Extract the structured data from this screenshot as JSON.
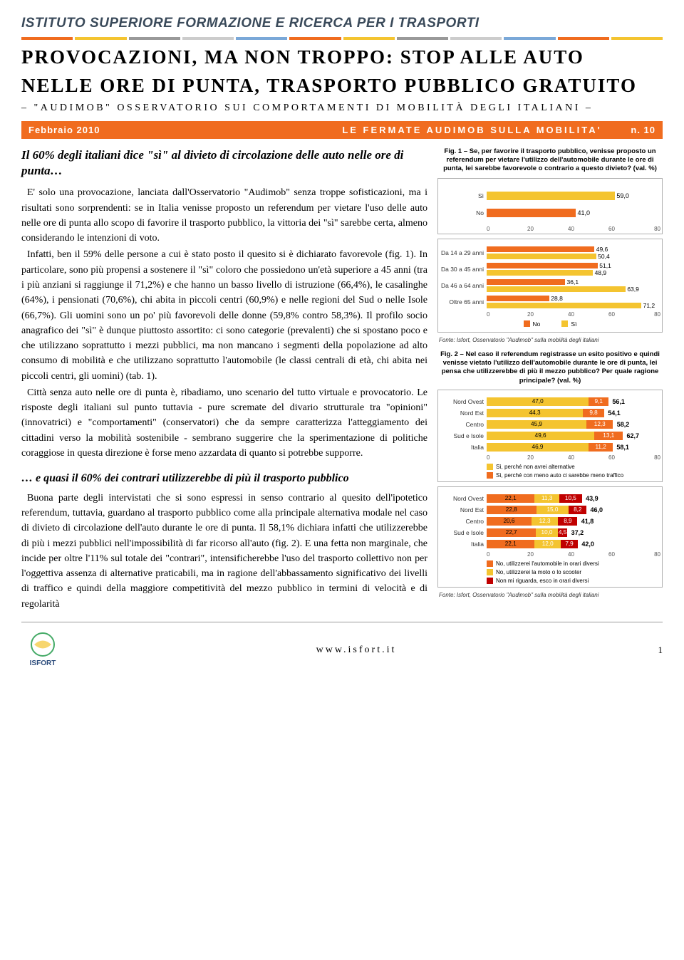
{
  "header_org": "ISTITUTO SUPERIORE FORMAZIONE E RICERCA PER I TRASPORTI",
  "decor_colors": [
    "#f06c1f",
    "#f4c430",
    "#999999",
    "#cccccc",
    "#7aa8d8",
    "#f06c1f",
    "#f4c430",
    "#999999",
    "#cccccc",
    "#7aa8d8",
    "#f06c1f",
    "#f4c430"
  ],
  "title_line1": "PROVOCAZIONI, MA NON TROPPO: STOP ALLE AUTO",
  "title_line2": "NELLE ORE DI PUNTA, TRASPORTO PUBBLICO GRATUITO",
  "subtitle": "– \"AUDIMOB\" OSSERVATORIO SUI COMPORTAMENTI DI MOBILITÀ DEGLI ITALIANI –",
  "issue": {
    "date": "Febbraio 2010",
    "series": "LE FERMATE AUDIMOB SULLA MOBILITA'",
    "num": "n. 10"
  },
  "lead1": "Il 60% degli italiani dice \"sì\" al divieto di circolazione delle auto nelle ore di punta…",
  "p1": "E' solo una provocazione, lanciata dall'Osservatorio \"Audimob\" senza troppe sofisticazioni, ma i risultati sono sorprendenti: se in Italia venisse proposto un referendum per vietare l'uso delle auto nelle ore di punta allo scopo di favorire il trasporto pubblico, la vittoria dei \"sì\" sarebbe certa, almeno considerando le intenzioni di voto.",
  "p2": "Infatti, ben il 59% delle persone a cui è stato posto il quesito si è dichiarato favorevole (fig. 1). In particolare, sono più propensi a sostenere il \"sì\" coloro che possiedono un'età superiore a 45 anni (tra i più anziani si raggiunge il 71,2%) e che hanno un basso livello di istruzione (66,4%), le casalinghe (64%), i pensionati (70,6%), chi abita in piccoli centri (60,9%) e nelle regioni del Sud o nelle Isole (66,7%). Gli uomini sono un po' più favorevoli delle donne (59,8% contro 58,3%). Il profilo socio anagrafico dei \"sì\" è dunque piuttosto assortito: ci sono categorie (prevalenti) che si spostano poco e che utilizzano soprattutto i mezzi pubblici, ma non mancano i segmenti della popolazione ad alto consumo di mobilità e che utilizzano soprattutto l'automobile (le classi centrali di età, chi abita nei piccoli centri, gli uomini) (tab. 1).",
  "p3": "Città senza auto nelle ore di punta è, ribadiamo, uno scenario del tutto virtuale e provocatorio. Le risposte degli italiani sul punto tuttavia - pure scremate del divario strutturale tra \"opinioni\" (innovatrici) e \"comportamenti\" (conservatori) che da sempre caratterizza l'atteggiamento dei cittadini verso la mobilità sostenibile - sembrano suggerire che la sperimentazione di politiche coraggiose in questa direzione è forse meno azzardata di quanto si potrebbe supporre.",
  "lead2": "… e quasi il 60% dei contrari utilizzerebbe di più il trasporto pubblico",
  "p4": "Buona parte degli intervistati che si sono espressi in senso contrario al quesito dell'ipotetico referendum, tuttavia, guardano al trasporto pubblico come alla principale alternativa modale nel caso di divieto di circolazione dell'auto durante le ore di punta. Il 58,1% dichiara infatti che utilizzerebbe di più i mezzi pubblici nell'impossibilità di far ricorso all'auto (fig. 2). E una fetta non marginale, che incide per oltre l'11% sul totale dei \"contrari\", intensificherebbe l'uso del trasporto collettivo non per l'oggettiva assenza di alternative praticabili, ma in ragione dell'abbassamento significativo dei livelli di traffico e quindi della maggiore competitività del mezzo pubblico in termini di velocità e di regolarità",
  "fig1_caption": "Fig. 1 – Se, per favorire il trasporto pubblico, venisse proposto un referendum per vietare l'utilizzo dell'automobile durante le ore di punta, lei sarebbe favorevole o contrario a questo divieto? (val. %)",
  "fig1a": {
    "max": 80,
    "rows": [
      {
        "label": "Sì",
        "value": 59.0,
        "color": "#f4c430"
      },
      {
        "label": "No",
        "value": 41.0,
        "color": "#f06c1f"
      }
    ],
    "ticks": [
      "0",
      "20",
      "40",
      "60",
      "80"
    ]
  },
  "fig1b": {
    "max": 80,
    "categories": [
      "Da 14 a 29 anni",
      "Da 30 a 45 anni",
      "Da 46 a 64 anni",
      "Oltre 65 anni"
    ],
    "series": [
      {
        "name": "No",
        "color": "#f06c1f",
        "vals": [
          49.6,
          51.1,
          36.1,
          28.8
        ]
      },
      {
        "name": "Sì",
        "color": "#f4c430",
        "vals": [
          50.4,
          48.9,
          63.9,
          71.2
        ]
      }
    ],
    "ticks": [
      "0",
      "20",
      "40",
      "60",
      "80"
    ],
    "legend": [
      {
        "label": "No",
        "color": "#f06c1f"
      },
      {
        "label": "Sì",
        "color": "#f4c430"
      }
    ]
  },
  "source1": "Fonte: Isfort, Osservatorio \"Audimob\" sulla mobilità degli italiani",
  "fig2_caption": "Fig. 2 – Nel caso il referendum registrasse un esito positivo e quindi venisse vietato l'utilizzo dell'automobile durante le ore di punta, lei pensa che utilizzerebbe di più il mezzo pubblico? Per quale ragione principale? (val. %)",
  "fig2a": {
    "max": 80,
    "labels": [
      "Nord Ovest",
      "Nord Est",
      "Centro",
      "Sud e Isole",
      "Italia"
    ],
    "segcolors": [
      "#f4c430",
      "#f06c1f"
    ],
    "rows": [
      {
        "vals": [
          47.0,
          9.1
        ],
        "total": "56,1"
      },
      {
        "vals": [
          44.3,
          9.8
        ],
        "total": "54,1"
      },
      {
        "vals": [
          45.9,
          12.3
        ],
        "total": "58,2"
      },
      {
        "vals": [
          49.6,
          13.1
        ],
        "total": "62,7"
      },
      {
        "vals": [
          46.9,
          11.2
        ],
        "total": "58,1"
      }
    ],
    "ticks": [
      "0",
      "20",
      "40",
      "60",
      "80"
    ],
    "legend": [
      {
        "color": "#f4c430",
        "label": "Sì, perché non avrei alternative"
      },
      {
        "color": "#f06c1f",
        "label": "Sì, perché con meno auto ci sarebbe meno traffico"
      }
    ]
  },
  "fig2b": {
    "max": 80,
    "labels": [
      "Nord Ovest",
      "Nord Est",
      "Centro",
      "Sud e Isole",
      "Italia"
    ],
    "segcolors": [
      "#f06c1f",
      "#f4c430",
      "#c00000"
    ],
    "rows": [
      {
        "vals": [
          22.1,
          11.3,
          10.5
        ],
        "total": "43,9"
      },
      {
        "vals": [
          22.8,
          15.0,
          8.2
        ],
        "total": "46,0"
      },
      {
        "vals": [
          20.6,
          12.3,
          8.9
        ],
        "total": "41,8"
      },
      {
        "vals": [
          22.7,
          10.0,
          4.5
        ],
        "total": "37,2"
      },
      {
        "vals": [
          22.1,
          12.0,
          7.9
        ],
        "total": "42,0"
      }
    ],
    "ticks": [
      "0",
      "20",
      "40",
      "60",
      "80"
    ],
    "legend": [
      {
        "color": "#f06c1f",
        "label": "No, utilizzerei l'automobile in orari diversi"
      },
      {
        "color": "#f4c430",
        "label": "No, utilizzerei la moto o lo scooter"
      },
      {
        "color": "#c00000",
        "label": "Non mi riguarda, esco in orari diversi"
      }
    ]
  },
  "footer": {
    "logo_text": "ISFORT",
    "url": "www.isfort.it",
    "page": "1"
  }
}
